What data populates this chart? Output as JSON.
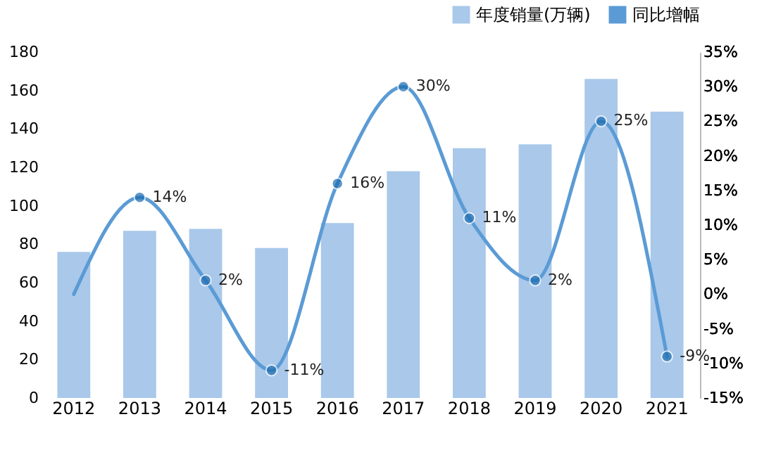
{
  "chart_data": {
    "type": "bar",
    "categories": [
      "2012",
      "2013",
      "2014",
      "2015",
      "2016",
      "2017",
      "2018",
      "2019",
      "2020",
      "2021"
    ],
    "series": [
      {
        "name": "年度销量(万辆)",
        "color": "#a9c8ea",
        "values": [
          76,
          87,
          88,
          78,
          91,
          118,
          130,
          132,
          166,
          149
        ]
      },
      {
        "name": "同比增幅",
        "type": "line",
        "axis": "y2",
        "color": "#5b9bd5",
        "values": [
          0,
          14,
          2,
          -11,
          16,
          30,
          11,
          2,
          25,
          -9
        ],
        "value_labels": [
          null,
          "14%",
          "2%",
          "-11%",
          "16%",
          "30%",
          "11%",
          "2%",
          "25%",
          "-9%"
        ]
      }
    ],
    "ylim": [
      0,
      180
    ],
    "yticks": [
      0,
      20,
      40,
      60,
      80,
      100,
      120,
      140,
      160,
      180
    ],
    "y2lim": [
      -15,
      35
    ],
    "y2ticks": [
      {
        "value": -15,
        "label": "-15%"
      },
      {
        "value": -10,
        "label": "-10%"
      },
      {
        "value": -5,
        "label": "-5%"
      },
      {
        "value": 0,
        "label": "0%"
      },
      {
        "value": 5,
        "label": "5%"
      },
      {
        "value": 10,
        "label": "10%"
      },
      {
        "value": 15,
        "label": "15%"
      },
      {
        "value": 20,
        "label": "20%"
      },
      {
        "value": 25,
        "label": "25%"
      },
      {
        "value": 30,
        "label": "30%"
      },
      {
        "value": 35,
        "label": "35%"
      }
    ],
    "legend": "top right",
    "marker": "circle",
    "grid": false
  }
}
